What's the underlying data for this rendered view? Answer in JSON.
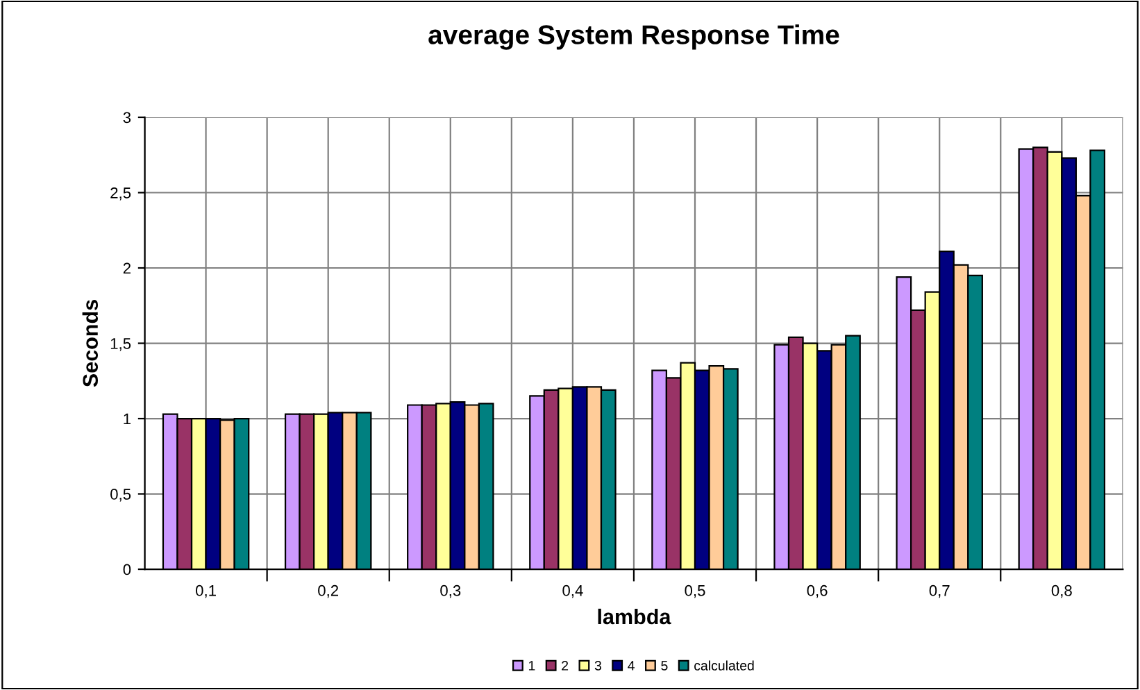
{
  "chart_data": {
    "type": "bar",
    "title": "average System Response Time",
    "xlabel": "lambda",
    "ylabel": "Seconds",
    "categories": [
      "0,1",
      "0,2",
      "0,3",
      "0,4",
      "0,5",
      "0,6",
      "0,7",
      "0,8"
    ],
    "series": [
      {
        "name": "1",
        "color": "#cc99ff",
        "values": [
          1.03,
          1.03,
          1.09,
          1.15,
          1.32,
          1.49,
          1.94,
          2.79
        ]
      },
      {
        "name": "2",
        "color": "#993366",
        "values": [
          1.0,
          1.03,
          1.09,
          1.19,
          1.27,
          1.54,
          1.72,
          2.8
        ]
      },
      {
        "name": "3",
        "color": "#ffff99",
        "values": [
          1.0,
          1.03,
          1.1,
          1.2,
          1.37,
          1.5,
          1.84,
          2.77
        ]
      },
      {
        "name": "4",
        "color": "#000080",
        "values": [
          1.0,
          1.04,
          1.11,
          1.21,
          1.32,
          1.45,
          2.11,
          2.73
        ]
      },
      {
        "name": "5",
        "color": "#ffcc99",
        "values": [
          0.99,
          1.04,
          1.09,
          1.21,
          1.35,
          1.49,
          2.02,
          2.48
        ]
      },
      {
        "name": "calculated",
        "color": "#008080",
        "values": [
          1.0,
          1.04,
          1.1,
          1.19,
          1.33,
          1.55,
          1.95,
          2.78
        ]
      }
    ],
    "ylim": [
      0,
      3
    ],
    "yticks": [
      0,
      {
        "value": 0.5,
        "label": "0,5"
      },
      1,
      {
        "value": 1.5,
        "label": "1,5"
      },
      2,
      {
        "value": 2.5,
        "label": "2,5"
      },
      3
    ],
    "grid": true,
    "legend": "bottom"
  }
}
